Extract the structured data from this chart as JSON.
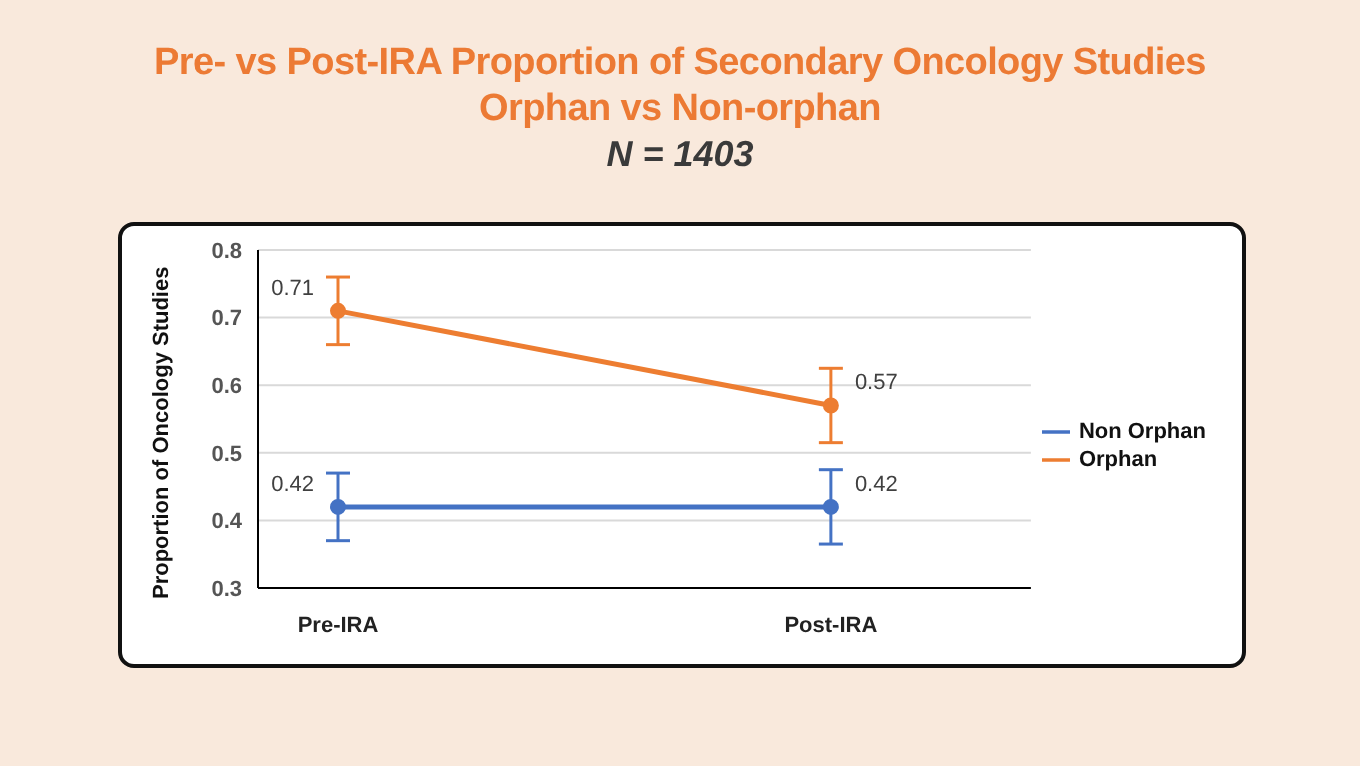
{
  "chart_data": {
    "type": "line",
    "title": "Pre- vs Post-IRA Proportion of Secondary Oncology Studies\nOrphan vs Non-orphan",
    "subtitle": "N = 1403",
    "ylabel": "Proportion of Oncology Studies",
    "categories": [
      "Pre-IRA",
      "Post-IRA"
    ],
    "series": [
      {
        "name": "Non Orphan",
        "color": "#4472c4",
        "values": [
          0.42,
          0.42
        ],
        "errors": [
          0.05,
          0.055
        ]
      },
      {
        "name": "Orphan",
        "color": "#ed7d31",
        "values": [
          0.71,
          0.57
        ],
        "errors": [
          0.05,
          0.055
        ]
      }
    ],
    "ylim": [
      0.3,
      0.8
    ],
    "yticks": [
      0.3,
      0.4,
      0.5,
      0.6,
      0.7,
      0.8
    ],
    "grid": "y",
    "legend": "right",
    "marker": "circle",
    "line_style": "solid",
    "data_labels": true
  }
}
